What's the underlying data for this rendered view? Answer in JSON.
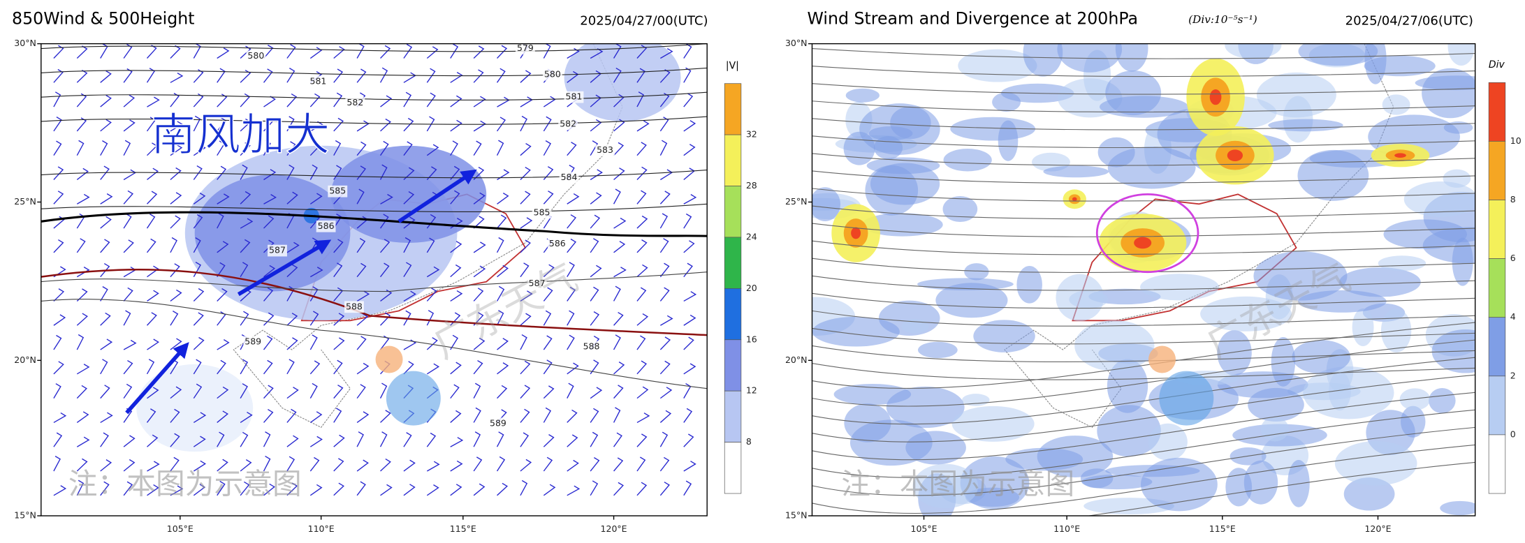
{
  "left_panel": {
    "title": "850Wind & 500Height",
    "timestamp": "2025/04/27/00(UTC)",
    "annotation": "南风加大",
    "note": "注：本图为示意图",
    "watermark": "广东天气",
    "lat_labels": [
      "30°N",
      "25°N",
      "20°N",
      "15°N"
    ],
    "lon_labels": [
      "105°E",
      "110°E",
      "115°E",
      "120°E"
    ],
    "colorbar": {
      "title": "|V|",
      "ticks": [
        32,
        28,
        24,
        20,
        16,
        12,
        8
      ],
      "colors": [
        "#f5a623",
        "#f4f05a",
        "#a6e05a",
        "#2fb54a",
        "#1f6fe0",
        "#7f90e6",
        "#b7c6f2",
        "#ffffff"
      ]
    },
    "contour_labels": [
      "579",
      "580",
      "580",
      "581",
      "581",
      "582",
      "582",
      "583",
      "584",
      "585",
      "585",
      "586",
      "586",
      "587",
      "587",
      "588",
      "588",
      "589",
      "589"
    ]
  },
  "right_panel": {
    "title": "Wind Stream and Divergence at 200hPa",
    "unit": "(Div:10⁻⁵s⁻¹)",
    "timestamp": "2025/04/27/06(UTC)",
    "note": "注：本图为示意图",
    "watermark": "广东天气",
    "lat_labels": [
      "30°N",
      "25°N",
      "20°N",
      "15°N"
    ],
    "lon_labels": [
      "105°E",
      "110°E",
      "115°E",
      "120°E"
    ],
    "colorbar": {
      "title": "Div",
      "ticks": [
        10,
        8,
        6,
        4,
        2,
        0
      ],
      "colors": [
        "#ee4422",
        "#f5a623",
        "#f4f05a",
        "#a6e05a",
        "#7f9ee6",
        "#b7cdf2",
        "#ffffff"
      ]
    }
  }
}
